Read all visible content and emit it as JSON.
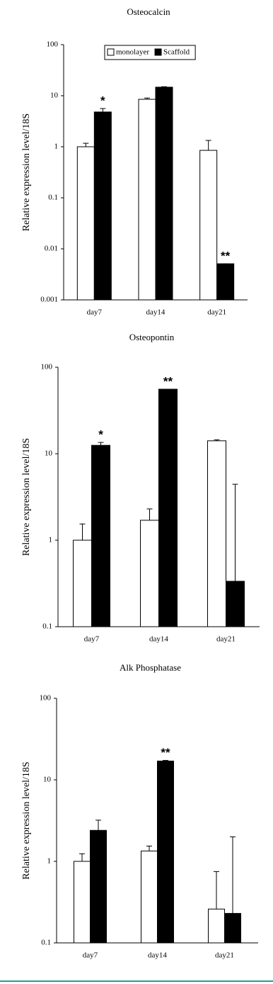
{
  "chart_data": [
    {
      "type": "bar",
      "title": "Osteocalcin",
      "y_label": "Relative expression level/18S",
      "log_scale": true,
      "legend": "top",
      "categories": [
        "day7",
        "day14",
        "day21"
      ],
      "series": [
        {
          "name": "monolayer",
          "color": "#ffffff",
          "values": [
            1.0,
            8.5,
            0.85
          ],
          "errors": [
            0.17,
            0.5,
            0.48
          ],
          "annotations": [
            null,
            null,
            null
          ]
        },
        {
          "name": "Scaffold",
          "color": "#000000",
          "values": [
            4.8,
            14.7,
            0.0051
          ],
          "errors": [
            0.8,
            0.3,
            0
          ],
          "annotations": [
            "*",
            null,
            "**"
          ]
        }
      ],
      "ylim": [
        0.001,
        100
      ],
      "yticks": [
        100,
        10,
        1,
        0.1,
        0.01,
        0.001
      ]
    },
    {
      "type": "bar",
      "title": "Osteopontin",
      "y_label": "Relative expression level/18S",
      "log_scale": true,
      "categories": [
        "day7",
        "day14",
        "day21"
      ],
      "series": [
        {
          "color": "#ffffff",
          "values": [
            1.0,
            1.7,
            14.1
          ],
          "errors": [
            0.54,
            0.6,
            0.4
          ],
          "annotations": [
            null,
            null,
            null
          ]
        },
        {
          "color": "#000000",
          "values": [
            12.5,
            55.7,
            0.335
          ],
          "errors": [
            1.0,
            0,
            4.1
          ],
          "annotations": [
            "*",
            "**",
            null
          ]
        }
      ],
      "ylim": [
        0.1,
        100
      ],
      "yticks": [
        100,
        10,
        1,
        0.1
      ]
    },
    {
      "type": "bar",
      "title": "Alk Phosphatase",
      "y_label": "Relative expression level/18S",
      "log_scale": true,
      "categories": [
        "day7",
        "day14",
        "day21"
      ],
      "series": [
        {
          "color": "#ffffff",
          "values": [
            1.0,
            1.34,
            0.26
          ],
          "errors": [
            0.24,
            0.2,
            0.49
          ],
          "annotations": [
            null,
            null,
            null
          ]
        },
        {
          "color": "#000000",
          "values": [
            2.4,
            17,
            0.23
          ],
          "errors": [
            0.8,
            0.3,
            1.77
          ],
          "annotations": [
            null,
            "**",
            null
          ]
        }
      ],
      "ylim": [
        0.1,
        100
      ],
      "yticks": [
        100,
        10,
        1,
        0.1
      ]
    }
  ]
}
